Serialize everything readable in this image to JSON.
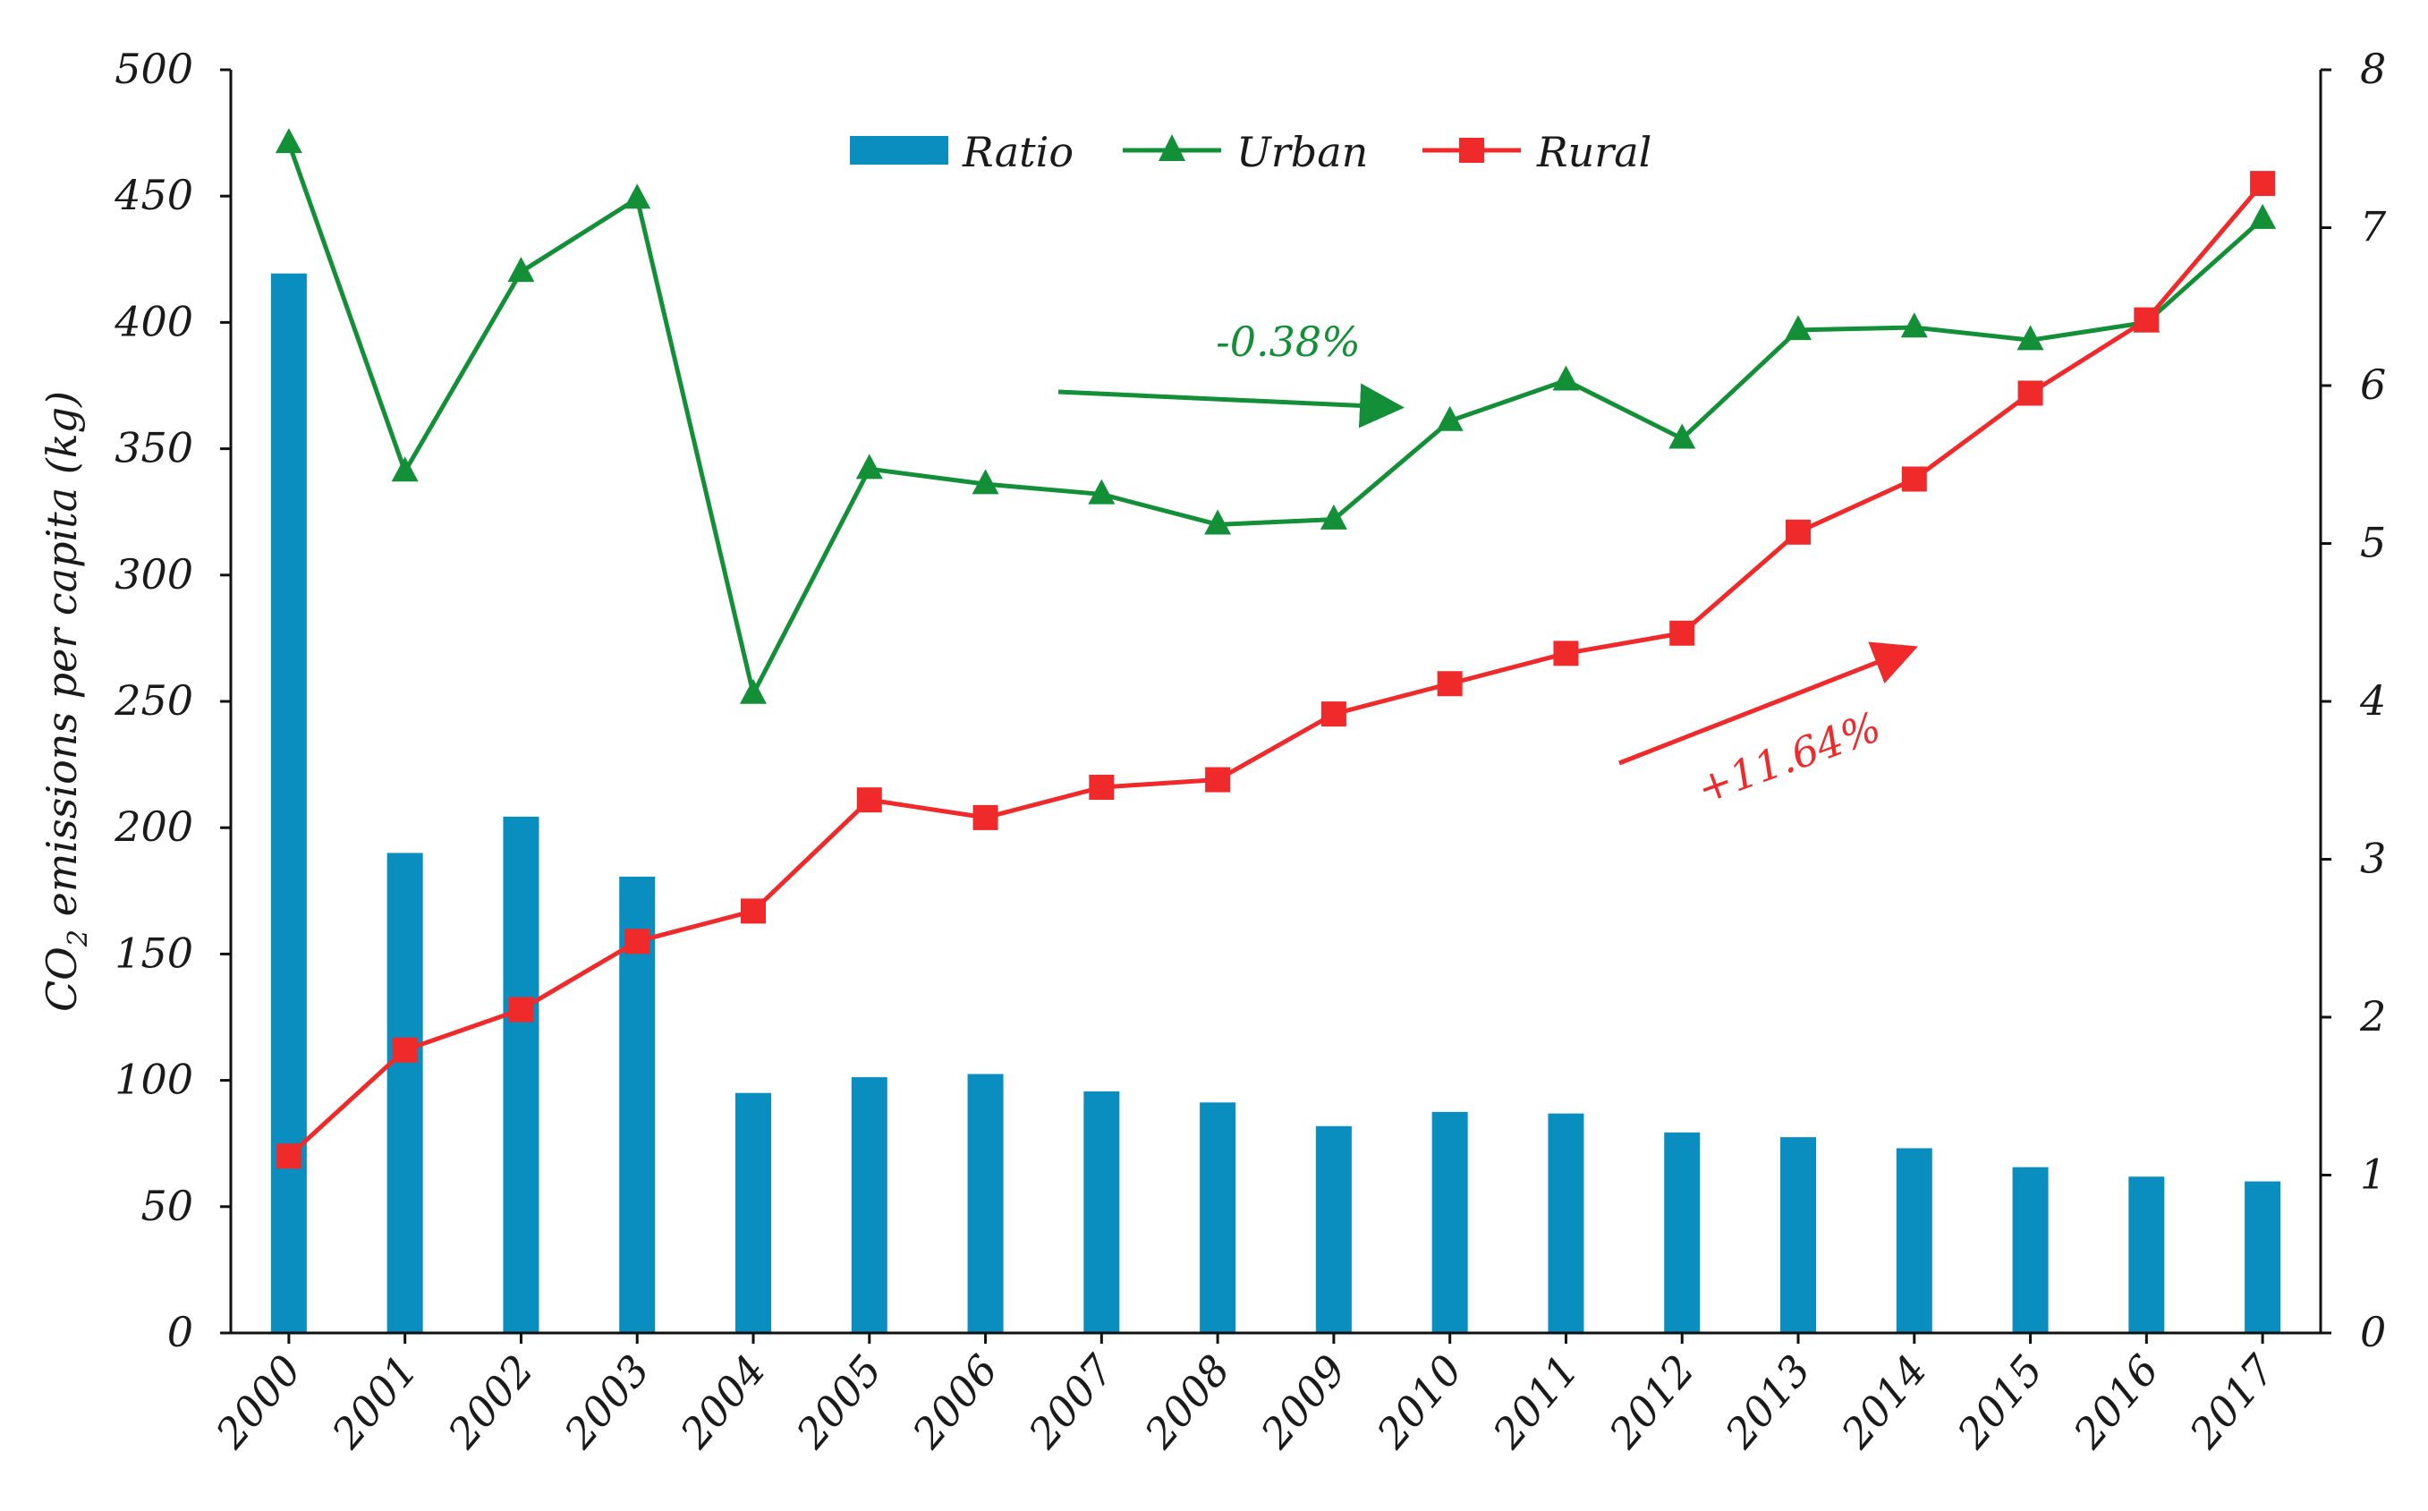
{
  "chart_data": {
    "type": "bar+line",
    "categories": [
      "2000",
      "2001",
      "2002",
      "2003",
      "2004",
      "2005",
      "2006",
      "2007",
      "2008",
      "2009",
      "2010",
      "2011",
      "2012",
      "2013",
      "2014",
      "2015",
      "2016",
      "2017"
    ],
    "ylabel": "CO2 emissions per capita (kg)",
    "ylabel_main": "CO",
    "ylabel_sub": "2",
    "ylabel_rest": " emissions per capita (kg)",
    "ylim_left": [
      0,
      500
    ],
    "ylim_right": [
      0,
      8
    ],
    "yticks_left": [
      "0",
      "50",
      "100",
      "150",
      "200",
      "250",
      "300",
      "350",
      "400",
      "450",
      "500"
    ],
    "yticks_right": [
      "0",
      "1",
      "2",
      "3",
      "4",
      "5",
      "6",
      "7",
      "8"
    ],
    "series": [
      {
        "name": "Ratio",
        "type": "bar",
        "axis": "right",
        "color": "#0a8ec0",
        "values": [
          6.71,
          3.04,
          3.27,
          2.89,
          1.52,
          1.62,
          1.64,
          1.53,
          1.46,
          1.31,
          1.4,
          1.39,
          1.27,
          1.24,
          1.17,
          1.05,
          0.99,
          0.96
        ]
      },
      {
        "name": "Urban",
        "type": "line",
        "marker": "triangle",
        "axis": "left",
        "color": "#139037",
        "values": [
          471,
          341,
          420,
          449,
          253,
          342,
          336,
          332,
          320,
          322,
          361,
          377,
          354,
          397,
          398,
          393,
          400,
          441
        ]
      },
      {
        "name": "Rural",
        "type": "line",
        "marker": "square",
        "axis": "left",
        "color": "#f02a2a",
        "values": [
          70,
          112,
          128,
          155,
          167,
          211,
          204,
          216,
          219,
          245,
          257,
          269,
          277,
          317,
          338,
          372,
          401,
          455
        ]
      }
    ],
    "annotations": [
      {
        "text": "-0.38%",
        "color": "#139037"
      },
      {
        "text": "+11.64%",
        "color": "#f02a2a"
      }
    ],
    "legend_position": "top-center"
  }
}
